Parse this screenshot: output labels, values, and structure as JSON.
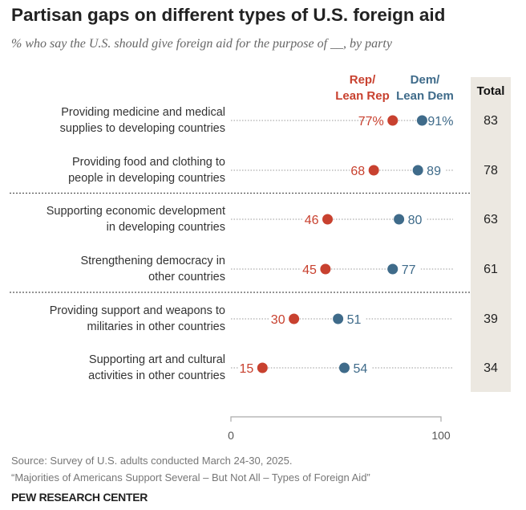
{
  "chart_data": {
    "type": "dot",
    "title": "Partisan gaps on different types of U.S. foreign aid",
    "subtitle": "% who say the U.S. should give foreign aid for the purpose of __, by party",
    "categories": [
      [
        "Providing medicine and medical",
        "supplies to developing countries"
      ],
      [
        "Providing food and clothing to",
        "people in developing countries"
      ],
      [
        "Supporting economic development",
        "in developing countries"
      ],
      [
        "Strengthening democracy in",
        "other countries"
      ],
      [
        "Providing support and weapons to",
        "militaries in other countries"
      ],
      [
        "Supporting art and cultural",
        "activities in other countries"
      ]
    ],
    "series": [
      {
        "name": [
          "Rep/",
          "Lean Rep"
        ],
        "color": "#c8412f",
        "values": [
          77,
          68,
          46,
          45,
          30,
          15
        ],
        "labels": [
          "77%",
          "68",
          "46",
          "45",
          "30",
          "15"
        ]
      },
      {
        "name": [
          "Dem/",
          "Lean Dem"
        ],
        "color": "#3f6b8a",
        "values": [
          91,
          89,
          80,
          77,
          51,
          54
        ],
        "labels": [
          "91%",
          "89",
          "80",
          "77",
          "51",
          "54"
        ]
      }
    ],
    "total": {
      "header": "Total",
      "values": [
        "83",
        "78",
        "63",
        "61",
        "39",
        "34"
      ]
    },
    "xlim": [
      0,
      100
    ],
    "xticks": [
      "0",
      "100"
    ],
    "group_separators_after": [
      1,
      3
    ]
  },
  "source": "Source: Survey of U.S. adults conducted March 24-30, 2025.",
  "report": "“Majorities of Americans Support Several – But Not All – Types of Foreign Aid”",
  "brand": "PEW RESEARCH CENTER"
}
